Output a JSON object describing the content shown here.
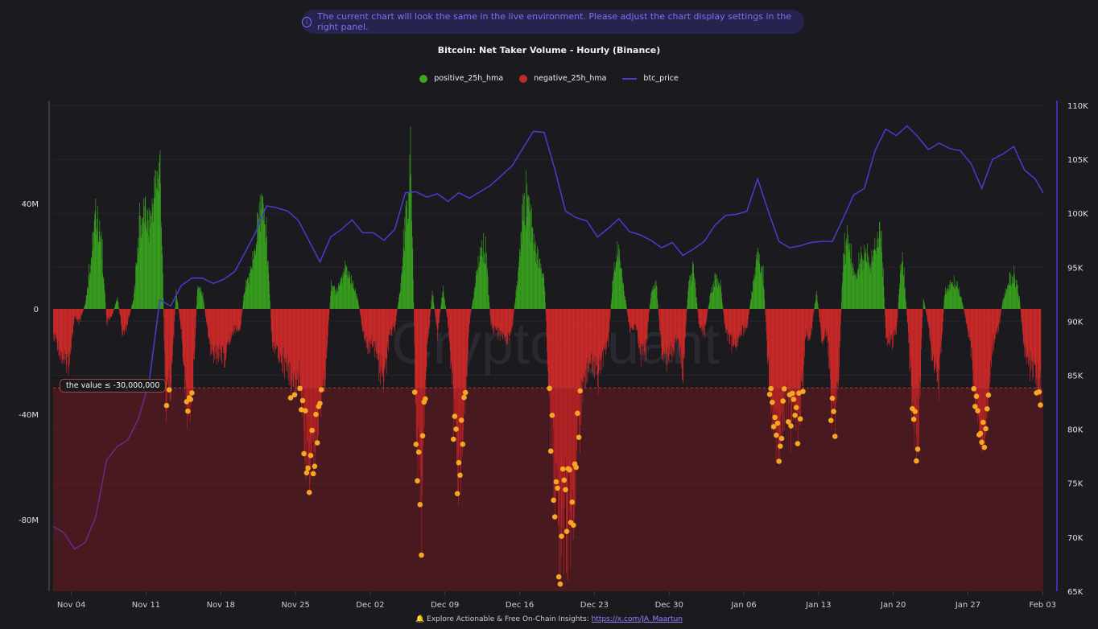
{
  "banner": {
    "icon": "info-icon",
    "text": "The current chart will look the same in the live environment. Please adjust the chart display settings in the right panel."
  },
  "footer": {
    "icon": "bell-icon",
    "text": "Explore Actionable & Free On-Chain Insights: ",
    "link": "https://x.com/JA_Maartun"
  },
  "watermark": "CryptoQuant",
  "colors": {
    "positive": "#3aa51f",
    "negative": "#d42a2a",
    "price": "#4b3bd1",
    "highlight": "#f5a623",
    "threshold_zone": "#4a1c20",
    "background": "#1b1a1f"
  },
  "chart_data": {
    "type": "bar",
    "title": "Bitcoin: Net Taker Volume - Hourly (Binance)",
    "legend": [
      {
        "name": "positive_25h_hma",
        "color": "#3aa51f"
      },
      {
        "name": "negative_25h_hma",
        "color": "#d42a2a"
      },
      {
        "name": "btc_price",
        "color": "#4b3bd1"
      }
    ],
    "legend_position": "top",
    "threshold": {
      "label": "the value ≤ -30,000,000",
      "value": -30000000
    },
    "x_axis": {
      "type": "date",
      "ticks": [
        "Nov 04",
        "Nov 11",
        "Nov 18",
        "Nov 25",
        "Dec 02",
        "Dec 09",
        "Dec 16",
        "Dec 23",
        "Dec 30",
        "Jan 06",
        "Jan 13",
        "Jan 20",
        "Jan 27",
        "Feb 03"
      ],
      "start": "2024-11-02T07:00",
      "end": "2025-02-03T02:00"
    },
    "y_left": {
      "unit": "USD",
      "range_millions": [
        -107,
        79
      ],
      "ticks": [
        "40M",
        "0",
        "-40M",
        "-80M"
      ]
    },
    "y_right": {
      "unit": "USD",
      "range_thousands": [
        65,
        110.5
      ],
      "ticks": [
        "110K",
        "105K",
        "100K",
        "95K",
        "90K",
        "85K",
        "80K",
        "75K",
        "70K",
        "65K"
      ]
    },
    "net_taker_volume_millions": {
      "start": "2024-11-02T07:00",
      "interval_hours": 12,
      "values": [
        -10,
        -18,
        -26,
        -22,
        -4,
        -6,
        3,
        22,
        45,
        30,
        -6,
        -3,
        5,
        -12,
        -5,
        4,
        35,
        45,
        38,
        55,
        68,
        -40,
        -35,
        8,
        -10,
        -48,
        -42,
        10,
        6,
        -12,
        -22,
        -18,
        -24,
        -15,
        -8,
        -10,
        12,
        15,
        30,
        50,
        30,
        -15,
        -20,
        -22,
        -28,
        -40,
        -30,
        -50,
        -78,
        -60,
        -45,
        -30,
        10,
        8,
        14,
        18,
        12,
        5,
        -10,
        -18,
        -15,
        -25,
        -30,
        -12,
        -8,
        10,
        40,
        65,
        -60,
        -85,
        -20,
        8,
        -12,
        10,
        -8,
        -45,
        -70,
        -50,
        -5,
        10,
        28,
        25,
        -8,
        -10,
        -12,
        -15,
        -8,
        15,
        45,
        50,
        30,
        22,
        12,
        -45,
        -85,
        -95,
        -90,
        -100,
        -70,
        -40,
        -28,
        -25,
        -30,
        -22,
        -15,
        20,
        25,
        8,
        -10,
        -8,
        -20,
        -18,
        8,
        10,
        -20,
        -22,
        -18,
        -12,
        -30,
        12,
        18,
        -8,
        -10,
        5,
        15,
        10,
        -12,
        -15,
        -18,
        -10,
        -8,
        10,
        25,
        15,
        -30,
        -55,
        -65,
        -45,
        -50,
        -48,
        -45,
        -12,
        -10,
        8,
        -15,
        -10,
        -48,
        -40,
        25,
        30,
        15,
        20,
        25,
        20,
        30,
        40,
        -12,
        -15,
        -10,
        28,
        -5,
        -45,
        -55,
        5,
        -8,
        -28,
        -32,
        8,
        10,
        12,
        6,
        -5,
        -20,
        -50,
        -65,
        -50,
        -15,
        -10,
        5,
        12,
        15,
        5,
        -20,
        -25,
        -30,
        -38
      ]
    },
    "btc_price_thousands": {
      "start": "2024-11-02T07:00",
      "interval_hours": 24,
      "values": [
        71.0,
        70.4,
        68.9,
        69.5,
        71.9,
        77.1,
        78.4,
        79.0,
        81.0,
        84.4,
        92.0,
        91.4,
        93.3,
        94.0,
        94.0,
        93.5,
        93.9,
        94.6,
        96.4,
        98.3,
        100.7,
        100.5,
        100.2,
        99.3,
        97.4,
        95.5,
        97.8,
        98.5,
        99.4,
        98.2,
        98.2,
        97.5,
        98.5,
        101.9,
        102.0,
        101.5,
        101.8,
        101.1,
        101.9,
        101.4,
        102.0,
        102.6,
        103.5,
        104.4,
        106.0,
        107.6,
        107.5,
        104.1,
        100.2,
        99.6,
        99.3,
        97.8,
        98.6,
        99.5,
        98.3,
        98.0,
        97.5,
        96.8,
        97.3,
        96.1,
        96.7,
        97.4,
        98.9,
        99.8,
        99.9,
        100.2,
        103.2,
        100.2,
        97.4,
        96.8,
        97.0,
        97.3,
        97.4,
        97.4,
        99.5,
        101.7,
        102.3,
        105.8,
        107.8,
        107.2,
        108.1,
        107.1,
        105.9,
        106.5,
        106.0,
        105.8,
        104.6,
        102.3,
        105.0,
        105.5,
        106.2,
        104.0,
        103.2,
        101.9
      ]
    }
  }
}
